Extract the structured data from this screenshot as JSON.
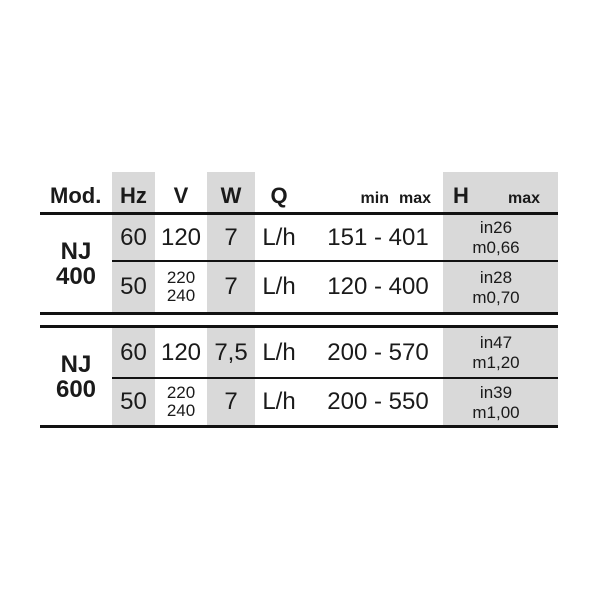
{
  "table": {
    "headers": {
      "mod": "Mod.",
      "hz": "Hz",
      "v": "V",
      "w": "W",
      "q": "Q",
      "min": "min",
      "max": "max",
      "h": "H",
      "hmax": "max"
    },
    "sections": [
      {
        "model_line1": "NJ",
        "model_line2": "400",
        "rows": [
          {
            "hz": "60",
            "v": [
              "120"
            ],
            "w": "7",
            "q": "L/h",
            "range": "151 - 401",
            "units": [
              "in",
              "m"
            ],
            "values": [
              "26",
              "0,66"
            ]
          },
          {
            "hz": "50",
            "v": [
              "220",
              "240"
            ],
            "w": "7",
            "q": "L/h",
            "range": "120 - 400",
            "units": [
              "in",
              "m"
            ],
            "values": [
              "28",
              "0,70"
            ]
          }
        ]
      },
      {
        "model_line1": "NJ",
        "model_line2": "600",
        "rows": [
          {
            "hz": "60",
            "v": [
              "120"
            ],
            "w": "7,5",
            "q": "L/h",
            "range": "200 - 570",
            "units": [
              "in",
              "m"
            ],
            "values": [
              "47",
              "1,20"
            ]
          },
          {
            "hz": "50",
            "v": [
              "220",
              "240"
            ],
            "w": "7",
            "q": "L/h",
            "range": "200 - 550",
            "units": [
              "in",
              "m"
            ],
            "values": [
              "39",
              "1,00"
            ]
          }
        ]
      }
    ],
    "colors": {
      "column_band": "#d9d9d9",
      "rule": "#121212",
      "text": "#1a1a1a",
      "background": "#ffffff"
    }
  }
}
